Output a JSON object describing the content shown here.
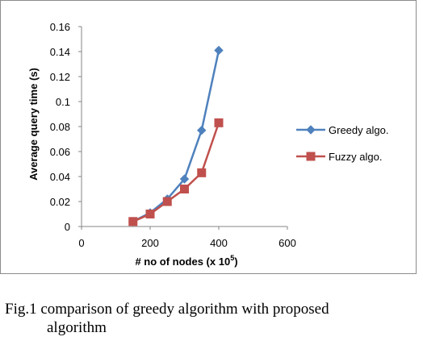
{
  "chart_data": {
    "type": "line",
    "x": [
      150,
      200,
      250,
      300,
      350,
      400
    ],
    "series": [
      {
        "name": "Greedy algo.",
        "values": [
          0.004,
          0.011,
          0.022,
          0.038,
          0.077,
          0.141
        ],
        "color": "#4F81BD",
        "marker": "diamond"
      },
      {
        "name": "Fuzzy algo.",
        "values": [
          0.004,
          0.01,
          0.02,
          0.03,
          0.043,
          0.083
        ],
        "color": "#C0504D",
        "marker": "square"
      }
    ],
    "xlim": [
      0,
      600
    ],
    "ylim": [
      0,
      0.16
    ],
    "xticks": [
      "0",
      "200",
      "400",
      "600"
    ],
    "yticks": [
      "0",
      "0.02",
      "0.04",
      "0.06",
      "0.08",
      "0.1",
      "0.12",
      "0.14",
      "0.16"
    ],
    "xlabel_prefix": "# no of nodes (x 10",
    "xlabel_sup": "5",
    "xlabel_suffix": ")",
    "ylabel": "Average query time (s)",
    "grid": false,
    "legend_position": "right"
  },
  "caption": {
    "line1": "Fig.1 comparison of greedy algorithm with proposed",
    "line2": "algorithm"
  }
}
